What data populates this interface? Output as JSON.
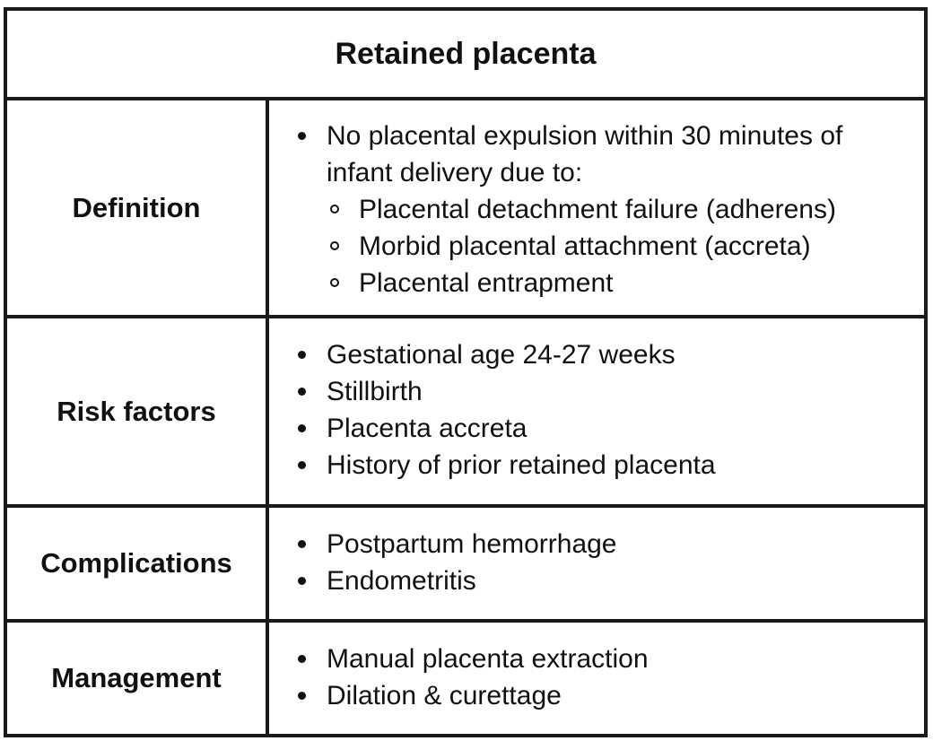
{
  "table": {
    "title": "Retained placenta",
    "definition": {
      "label": "Definition",
      "items": [
        "No placental expulsion within 30 minutes of infant delivery due to:"
      ],
      "subitems": [
        "Placental detachment failure (adherens)",
        "Morbid placental attachment (accreta)",
        "Placental entrapment"
      ]
    },
    "risk_factors": {
      "label": "Risk factors",
      "items": [
        "Gestational age 24-27 weeks",
        "Stillbirth",
        "Placenta accreta",
        "History of prior retained placenta"
      ]
    },
    "complications": {
      "label": "Complications",
      "items": [
        "Postpartum hemorrhage",
        "Endometritis"
      ]
    },
    "management": {
      "label": "Management",
      "items": [
        "Manual placenta extraction",
        "Dilation & curettage"
      ]
    }
  }
}
